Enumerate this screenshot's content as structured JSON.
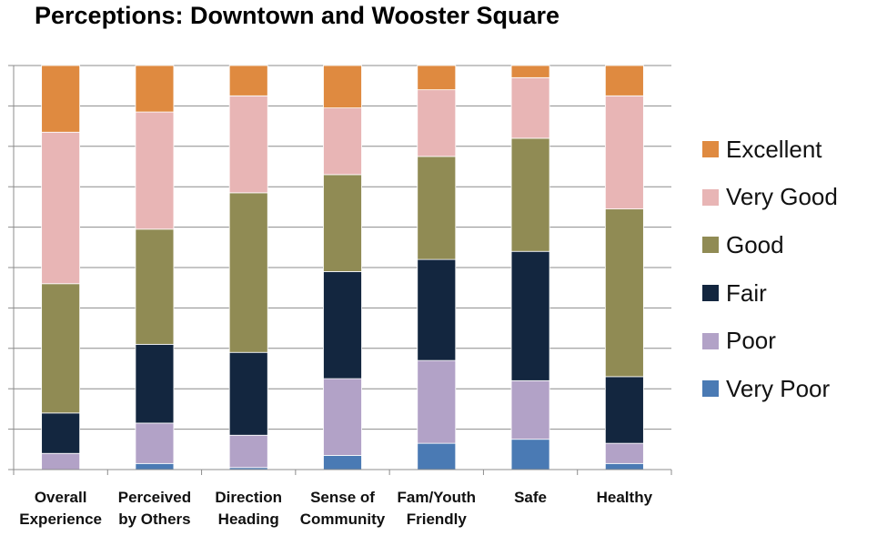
{
  "chart_data": {
    "type": "bar",
    "stacked": true,
    "normalized": true,
    "title": "Perceptions: Downtown and Wooster Square",
    "categories": [
      [
        "Overall",
        "Experience"
      ],
      [
        "Perceived",
        "by Others"
      ],
      [
        "Direction",
        "Heading"
      ],
      [
        "Sense of",
        "Community"
      ],
      [
        "Fam/Youth",
        "Friendly"
      ],
      [
        "Safe"
      ],
      [
        "Healthy"
      ]
    ],
    "ylim": [
      0,
      100
    ],
    "y_unit": "percent",
    "y_tick_labels_shown": false,
    "gridlines": true,
    "legend_position": "right",
    "series": [
      {
        "name": "Very Poor",
        "color": "#4a7ab4",
        "values": [
          0,
          1.5,
          0.5,
          3.5,
          6.5,
          7.5,
          1.5
        ]
      },
      {
        "name": "Poor",
        "color": "#b2a2c7",
        "values": [
          4,
          10,
          8,
          19,
          20.5,
          14.5,
          5
        ]
      },
      {
        "name": "Fair",
        "color": "#13263f",
        "values": [
          10,
          19.5,
          20.5,
          26.5,
          25,
          32,
          16.5
        ]
      },
      {
        "name": "Good",
        "color": "#908b54",
        "values": [
          32,
          28.5,
          39.5,
          24,
          25.5,
          28,
          41.5
        ]
      },
      {
        "name": "Very Good",
        "color": "#e8b5b5",
        "values": [
          37.5,
          29,
          24,
          16.5,
          16.5,
          15,
          28
        ]
      },
      {
        "name": "Excellent",
        "color": "#df8a40",
        "values": [
          16.5,
          11.5,
          7.5,
          10.5,
          6,
          3,
          7.5
        ]
      }
    ]
  }
}
